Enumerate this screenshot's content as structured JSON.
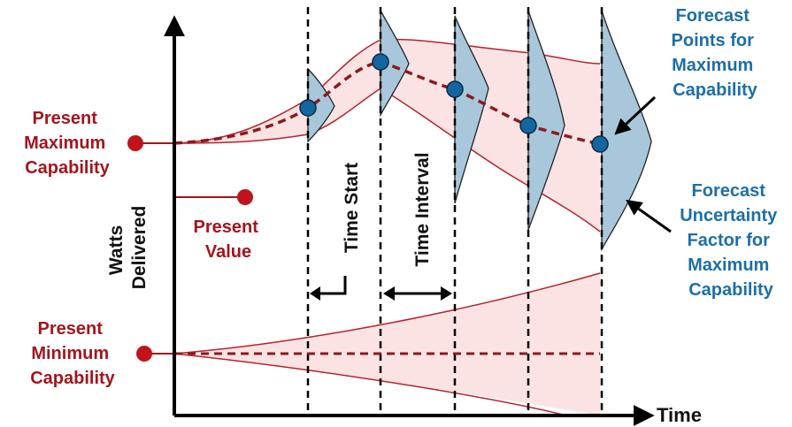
{
  "labels": {
    "present_maximum": [
      "Present",
      "Maximum",
      "Capability"
    ],
    "present_value": [
      "Present",
      "Value"
    ],
    "present_minimum": [
      "Present",
      "Minimum",
      "Capability"
    ],
    "y_axis": [
      "Watts",
      "Delivered"
    ],
    "x_axis": "Time",
    "time_start": "Time Start",
    "time_interval": "Time Interval",
    "forecast_points": [
      "Forecast",
      "Points for",
      "Maximum",
      "Capability"
    ],
    "forecast_uncertainty": [
      "Forecast",
      "Uncertainty",
      "Factor for",
      "Maximum",
      "Capability"
    ]
  },
  "colors": {
    "label_red": "#a3151c",
    "label_blue": "#1b6fa8",
    "band_fill": "#fbe3e3",
    "band_stroke": "#b5232b",
    "curve_dash": "#8b1a1f",
    "bell_fill": "#a9c7da",
    "point_fill": "#1466a0",
    "axis": "#000000"
  }
}
